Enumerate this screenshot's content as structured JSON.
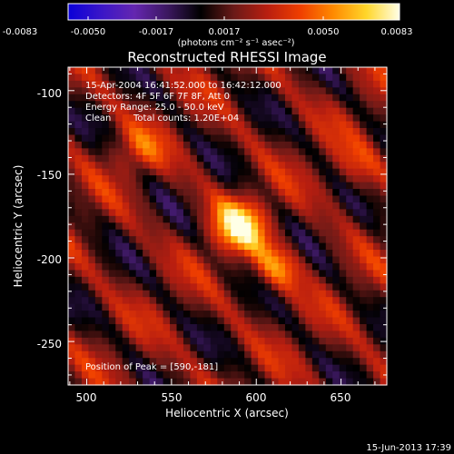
{
  "colorbar": {
    "ticks": [
      "-0.0083",
      "-0.0050",
      "-0.0017",
      "0.0017",
      "0.0050",
      "0.0083"
    ],
    "units_label": "(photons cm⁻² s⁻¹ asec⁻²)"
  },
  "chart_data": {
    "type": "heatmap",
    "title": "Reconstructed RHESSI Image",
    "xlabel": "Heliocentric X (arcsec)",
    "ylabel": "Heliocentric Y (arcsec)",
    "xlim": [
      489,
      677
    ],
    "ylim": [
      -276,
      -86
    ],
    "x_ticks": [
      "500",
      "550",
      "600",
      "650"
    ],
    "y_ticks": [
      "-100",
      "-150",
      "-200",
      "-250"
    ],
    "clim": [
      -0.0083,
      0.0083
    ],
    "peak": {
      "x": 590,
      "y": -181
    },
    "colors": {
      "stops": [
        "#0a00d8",
        "#3a16c8",
        "#6426b0",
        "#3c1860",
        "#000000",
        "#6a1a18",
        "#b81e10",
        "#ef3e00",
        "#ff8a00",
        "#ffd62a",
        "#ffffe6"
      ]
    },
    "annotations": [
      "15-Apr-2004 16:41:52.000 to 16:42:12.000",
      "Detectors: 4F 5F 6F 7F 8F, Att 0",
      "Energy Range: 25.0 - 50.0 keV",
      "Clean",
      "Total counts: 1.20E+04",
      "Position of Peak = [590,-181]"
    ]
  },
  "footer": {
    "timestamp": "15-Jun-2013 17:39"
  }
}
